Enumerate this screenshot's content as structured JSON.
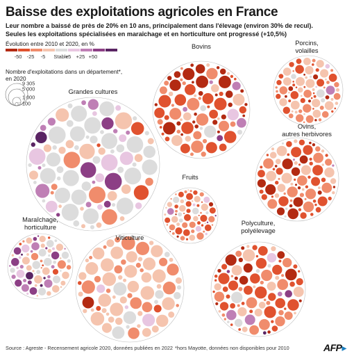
{
  "title": "Baisse des exploitations agricoles en France",
  "subtitle": [
    "Leur nombre a baissé de près de 20% en 10 ans, principalement dans l'élevage (environ 30% de recul).",
    "Seules les exploitations spécialisées en maraîchage et en horticulture ont progressé (+10,5%)"
  ],
  "color_legend": {
    "title": "Évolution entre 2010 et 2020, en %",
    "bins": [
      {
        "color": "#b32a12"
      },
      {
        "color": "#e0522f"
      },
      {
        "color": "#f08c6c"
      },
      {
        "color": "#f5c4ae"
      },
      {
        "color": "#dcdcdc"
      },
      {
        "color": "#e8c6e1"
      },
      {
        "color": "#bf7fb5"
      },
      {
        "color": "#8c3f85"
      },
      {
        "color": "#5a2463"
      }
    ],
    "tick_values": [
      "-50",
      "-25",
      "-5",
      "Stable",
      "+5",
      "+25",
      "+50"
    ]
  },
  "size_legend": {
    "title": [
      "Nombre d'exploitations dans un département*,",
      "en 2020"
    ],
    "values": [
      "9 305",
      "5 000",
      "1 000",
      "100"
    ]
  },
  "chart_data": {
    "type": "packed-bubbles",
    "value_unit": "évolution 2010-2020 (%)",
    "groups": [
      {
        "name": "Bovins",
        "bubble_count": 90,
        "dominant_change": "-25 à -50",
        "highlights": [
          "+25 à +50"
        ]
      },
      {
        "name": "Porcins, volailles",
        "bubble_count": 95,
        "dominant_change": "-5 à -50",
        "highlights": [
          "+5 à +25"
        ]
      },
      {
        "name": "Grandes cultures",
        "bubble_count": 95,
        "dominant_change": "-5 à +5",
        "highlights": [
          "-50",
          "+25 à +50"
        ]
      },
      {
        "name": "Ovins, autres herbivores",
        "bubble_count": 95,
        "dominant_change": "-25 à -50",
        "highlights": [
          "+25"
        ]
      },
      {
        "name": "Fruits",
        "bubble_count": 85,
        "dominant_change": "-5 à -50",
        "highlights": [
          "+25 à +50"
        ]
      },
      {
        "name": "Maraîchage, horticulture",
        "bubble_count": 90,
        "dominant_change": "-5 à +25",
        "highlights": [
          "+25 à +50"
        ]
      },
      {
        "name": "Viticulture",
        "bubble_count": 80,
        "dominant_change": "-5 à -25",
        "highlights": [
          "-5 à +5"
        ]
      },
      {
        "name": "Polyculture, polyélevage",
        "bubble_count": 95,
        "dominant_change": "-25 à -50",
        "highlights": [
          "+50"
        ]
      }
    ]
  },
  "footer": {
    "source": "Source : Agreste - Recensement agricole 2020, données publiées en 2022",
    "note": "*hors Mayotte, données non disponibles pour 2010",
    "logo": "AFP"
  }
}
